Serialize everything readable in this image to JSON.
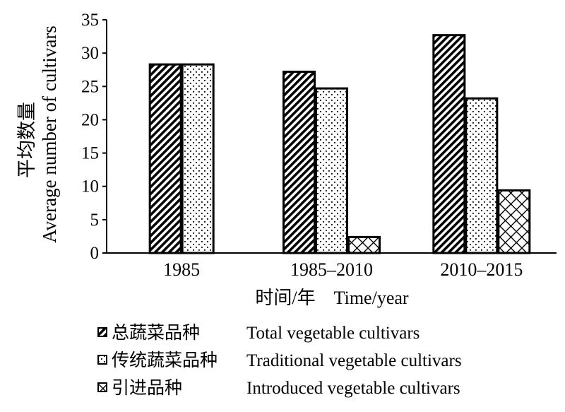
{
  "chart_data": {
    "type": "bar",
    "ylabel_cn": "平均数量",
    "ylabel_en": "Average  number of cultivars",
    "xlabel": "时间/年    Time/year",
    "ylim": [
      0,
      35
    ],
    "yticks": [
      0,
      5,
      10,
      15,
      20,
      25,
      30,
      35
    ],
    "categories": [
      "1985",
      "1985–2010",
      "2010–2015"
    ],
    "series": [
      {
        "name_cn": "总蔬菜品种",
        "name": "Total vegetable cultivars",
        "pattern": "diagonal-dense",
        "values": [
          28.3,
          27.2,
          32.7
        ]
      },
      {
        "name_cn": "传统蔬菜品种",
        "name": "Traditional vegetable cultivars",
        "pattern": "dots",
        "values": [
          28.3,
          24.7,
          23.2
        ]
      },
      {
        "name_cn": "引进品种",
        "name": "Introduced vegetable cultivars",
        "pattern": "crosshatch",
        "values": [
          null,
          2.4,
          9.4
        ]
      }
    ],
    "grid": false,
    "legend_position": "bottom"
  }
}
